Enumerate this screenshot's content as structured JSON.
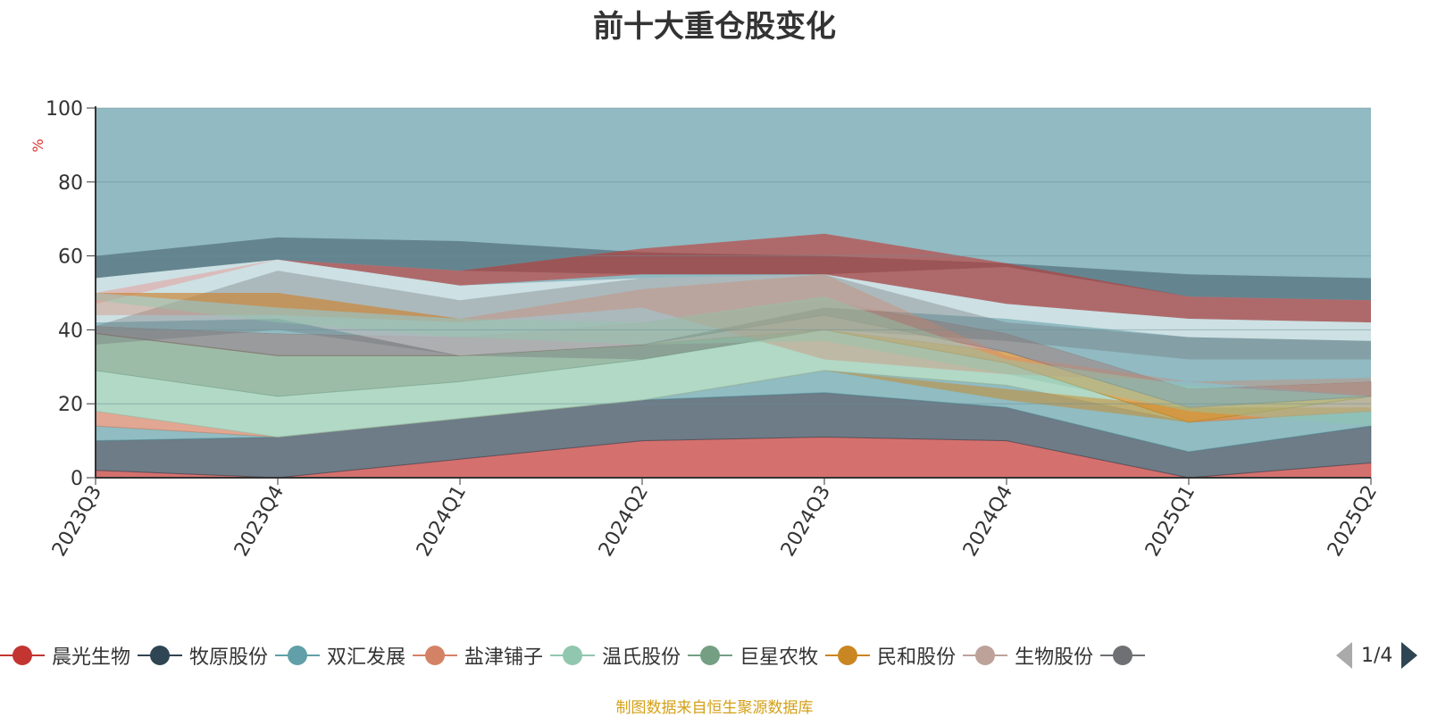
{
  "chart_data": {
    "type": "area",
    "title": "前十大重仓股变化",
    "ylabel": "%",
    "ylim": [
      0,
      100
    ],
    "yticks": [
      0,
      20,
      40,
      60,
      80,
      100
    ],
    "categories": [
      "2023Q3",
      "2023Q4",
      "2024Q1",
      "2024Q2",
      "2024Q3",
      "2024Q4",
      "2025Q1",
      "2025Q2"
    ],
    "stacked": true,
    "grid": true,
    "legend_position": "bottom",
    "legend_page": "1/4",
    "series": [
      {
        "name": "晨光生物",
        "color": "#c23531",
        "values": [
          2,
          0,
          5,
          10,
          11,
          10,
          0,
          4
        ]
      },
      {
        "name": "牧原股份",
        "color": "#2f4554",
        "values": [
          8,
          11,
          11,
          11,
          12,
          9,
          7,
          10
        ]
      },
      {
        "name": "双汇发展",
        "color": "#61a0a8",
        "values": [
          4,
          0,
          0,
          0,
          6,
          6,
          8,
          4
        ]
      },
      {
        "name": "盐津铺子",
        "color": "#d48265",
        "values": [
          4,
          0,
          0,
          0,
          0,
          0,
          0,
          4
        ]
      },
      {
        "name": "温氏股份",
        "color": "#91c7ae",
        "values": [
          11,
          11,
          10,
          11,
          11,
          6,
          0,
          0
        ]
      },
      {
        "name": "巨星农牧",
        "color": "#749f83",
        "values": [
          10,
          11,
          7,
          4,
          0,
          0,
          0,
          0
        ]
      },
      {
        "name": "民和股份",
        "color": "#ca8622",
        "values": [
          0,
          0,
          0,
          0,
          0,
          3,
          4,
          0
        ]
      },
      {
        "name": "生物股份",
        "color": "#bda29a",
        "values": [
          0,
          0,
          0,
          0,
          4,
          0,
          0,
          0
        ]
      },
      {
        "name": "",
        "color": "#6e7074",
        "values": [
          2,
          6,
          5,
          6,
          4,
          5,
          5,
          4
        ]
      }
    ],
    "remainder_color": "#91bac2"
  },
  "source_note": "制图数据来自恒生聚源数据库",
  "pager": {
    "label": "1/4"
  }
}
